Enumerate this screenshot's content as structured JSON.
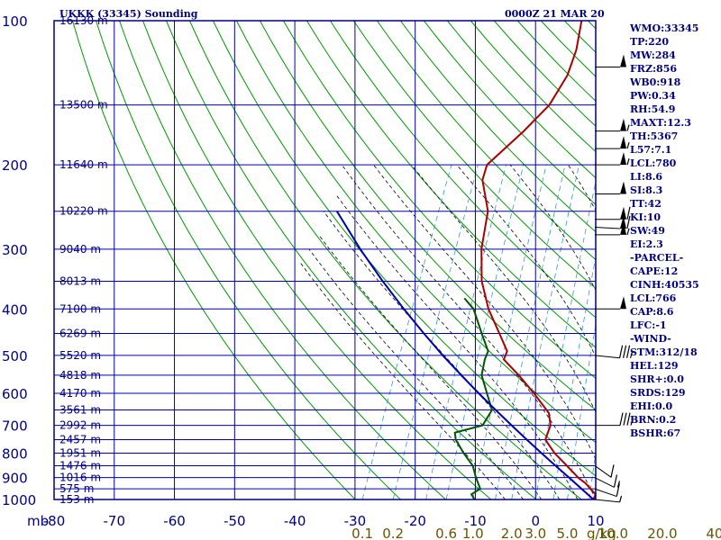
{
  "header": {
    "station": "UKKK (33345) Sounding",
    "time": "0000Z 21 MAR 20"
  },
  "colors": {
    "frame": "#000080",
    "isotherm_grid": "#0000aa",
    "dry_adiabat": "#009900",
    "moist_adiabat": "#000000",
    "mixing_ratio": "#3399cc",
    "temperature": "#aa0000",
    "dewpoint": "#005500",
    "parcel": "#0000aa",
    "stats_text": "#000080"
  },
  "stats": [
    "WMO:33345",
    "TP:220",
    "MW:284",
    "FRZ:856",
    "WB0:918",
    "PW:0.34",
    "RH:54.9",
    "MAXT:12.3",
    "TH:5367",
    "L57:7.1",
    "LCL:780",
    "LI:8.6",
    "SI:8.3",
    "TT:42",
    "KI:10",
    "SW:49",
    "EI:2.3",
    "-PARCEL-",
    "CAPE:12",
    "CINH:40535",
    "LCL:766",
    "CAP:8.6",
    "LFC:-1",
    "-WIND-",
    "STM:312/18",
    "HEL:129",
    "SHR+:0.0",
    "SRDS:129",
    "EHI:0.0",
    "BRN:0.2",
    "BSHR:67"
  ],
  "chart_data": {
    "type": "line",
    "title": "UKKK (33345) Sounding",
    "subtitle": "0000Z 21 MAR 20",
    "x_axis": {
      "unit_label": "mb",
      "range": [
        -80,
        10
      ],
      "ticks": [
        "-80",
        "-70",
        "-60",
        "-50",
        "-40",
        "-30",
        "-20",
        "-10",
        "0",
        "10"
      ]
    },
    "y_axis": {
      "scale": "log-pressure",
      "range": [
        1000,
        100
      ],
      "ticks": [
        "100",
        "200",
        "300",
        "400",
        "500",
        "600",
        "700",
        "800",
        "900",
        "1000"
      ]
    },
    "mixing_ratio_axis": {
      "unit_label": "g/kg",
      "labels": [
        "0.1",
        "0.2",
        "0.6",
        "1.0",
        "2.0",
        "3.0",
        "5.0",
        "10.0",
        "20.0",
        "40"
      ]
    },
    "height_labels": [
      {
        "p": 1000,
        "text": "153 m"
      },
      {
        "p": 950,
        "text": "575 m"
      },
      {
        "p": 900,
        "text": "1016 m"
      },
      {
        "p": 850,
        "text": "1476 m"
      },
      {
        "p": 800,
        "text": "1951 m"
      },
      {
        "p": 750,
        "text": "2457 m"
      },
      {
        "p": 700,
        "text": "2992 m"
      },
      {
        "p": 650,
        "text": "3561 m"
      },
      {
        "p": 600,
        "text": "4170 m"
      },
      {
        "p": 550,
        "text": "4818 m"
      },
      {
        "p": 500,
        "text": "5520 m"
      },
      {
        "p": 450,
        "text": "6269 m"
      },
      {
        "p": 400,
        "text": "7100 m"
      },
      {
        "p": 350,
        "text": "8013 m"
      },
      {
        "p": 300,
        "text": "9040 m"
      },
      {
        "p": 250,
        "text": "10220 m"
      },
      {
        "p": 200,
        "text": "11640 m"
      },
      {
        "p": 150,
        "text": "13500 m"
      },
      {
        "p": 100,
        "text": "16130 m"
      }
    ],
    "series": [
      {
        "name": "temperature",
        "points": [
          [
            1000,
            9.5
          ],
          [
            975,
            9.4
          ],
          [
            925,
            6.1
          ],
          [
            900,
            3.9
          ],
          [
            850,
            0.2
          ],
          [
            800,
            -3.8
          ],
          [
            750,
            -7.2
          ],
          [
            700,
            -7.5
          ],
          [
            660,
            -9.1
          ],
          [
            600,
            -14.4
          ],
          [
            550,
            -19.6
          ],
          [
            510,
            -24.5
          ],
          [
            490,
            -24.6
          ],
          [
            450,
            -28.1
          ],
          [
            400,
            -33.0
          ],
          [
            350,
            -37.3
          ],
          [
            300,
            -40.6
          ],
          [
            270,
            -42.0
          ],
          [
            250,
            -43.0
          ],
          [
            215,
            -47.4
          ],
          [
            200,
            -47.9
          ],
          [
            170,
            -43.2
          ],
          [
            150,
            -40.2
          ],
          [
            130,
            -39.2
          ],
          [
            115,
            -39.8
          ],
          [
            100,
            -41.6
          ]
        ]
      },
      {
        "name": "dewpoint",
        "points": [
          [
            1000,
            -16.8
          ],
          [
            975,
            -18.0
          ],
          [
            950,
            -16.6
          ],
          [
            900,
            -18.7
          ],
          [
            850,
            -20.6
          ],
          [
            800,
            -23.9
          ],
          [
            750,
            -27.0
          ],
          [
            725,
            -27.9
          ],
          [
            700,
            -22.5
          ],
          [
            650,
            -22.0
          ],
          [
            600,
            -24.8
          ],
          [
            550,
            -27.8
          ],
          [
            510,
            -28.7
          ],
          [
            490,
            -28.8
          ],
          [
            450,
            -32.0
          ],
          [
            400,
            -36.3
          ],
          [
            380,
            -39.4
          ]
        ]
      },
      {
        "name": "parcel",
        "points": [
          [
            1000,
            9.5
          ],
          [
            950,
            5.8
          ],
          [
            900,
            1.9
          ],
          [
            850,
            -2.3
          ],
          [
            800,
            -6.7
          ],
          [
            750,
            -11.3
          ],
          [
            700,
            -16.1
          ],
          [
            650,
            -21.2
          ],
          [
            600,
            -26.6
          ],
          [
            550,
            -32.3
          ],
          [
            500,
            -38.4
          ],
          [
            450,
            -44.8
          ],
          [
            400,
            -51.7
          ],
          [
            350,
            -59.2
          ],
          [
            300,
            -67.4
          ],
          [
            250,
            -76.4
          ]
        ]
      }
    ],
    "wind_barbs": [
      {
        "p": 1000,
        "dir": 280,
        "speed_kt": 5
      },
      {
        "p": 950,
        "dir": 300,
        "speed_kt": 10
      },
      {
        "p": 900,
        "dir": 310,
        "speed_kt": 15
      },
      {
        "p": 850,
        "dir": 320,
        "speed_kt": 10
      },
      {
        "p": 700,
        "dir": 270,
        "speed_kt": 35
      },
      {
        "p": 500,
        "dir": 280,
        "speed_kt": 35
      },
      {
        "p": 400,
        "dir": 270,
        "speed_kt": 50
      },
      {
        "p": 280,
        "dir": 270,
        "speed_kt": 55
      },
      {
        "p": 270,
        "dir": 275,
        "speed_kt": 60
      },
      {
        "p": 260,
        "dir": 270,
        "speed_kt": 60
      },
      {
        "p": 230,
        "dir": 270,
        "speed_kt": 50
      },
      {
        "p": 200,
        "dir": 270,
        "speed_kt": 55
      },
      {
        "p": 185,
        "dir": 270,
        "speed_kt": 55
      },
      {
        "p": 170,
        "dir": 270,
        "speed_kt": 55
      },
      {
        "p": 125,
        "dir": 270,
        "speed_kt": 50
      }
    ],
    "grid": true,
    "legend": "none"
  }
}
